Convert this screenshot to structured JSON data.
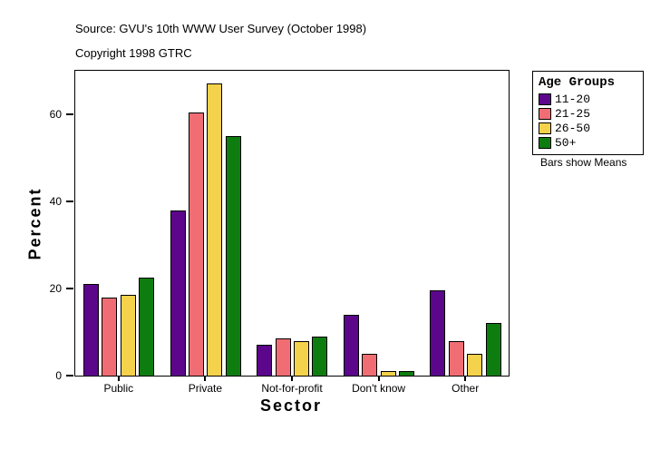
{
  "header": {
    "source_line": "Source: GVU's 10th WWW User Survey (October 1998)",
    "copyright_line": "Copyright 1998 GTRC"
  },
  "legend": {
    "title": "Age Groups",
    "items": [
      {
        "label": "11-20",
        "color": "#5C068C"
      },
      {
        "label": "21-25",
        "color": "#F06E73"
      },
      {
        "label": "26-50",
        "color": "#F5D24B"
      },
      {
        "label": "50+",
        "color": "#0E7D10"
      }
    ],
    "note": "Bars show Means"
  },
  "chart_data": {
    "type": "bar",
    "title": "",
    "xlabel": "Sector",
    "ylabel": "Percent",
    "categories": [
      "Public",
      "Private",
      "Not-for-profit",
      "Don't know",
      "Other"
    ],
    "series": [
      {
        "name": "11-20",
        "color": "#5C068C",
        "values": [
          21,
          38,
          7,
          14,
          19.5
        ]
      },
      {
        "name": "21-25",
        "color": "#F06E73",
        "values": [
          18,
          60.5,
          8.5,
          5,
          8
        ]
      },
      {
        "name": "26-50",
        "color": "#F5D24B",
        "values": [
          18.5,
          67,
          8,
          1,
          5
        ]
      },
      {
        "name": "50+",
        "color": "#0E7D10",
        "values": [
          22.5,
          55,
          9,
          1,
          12
        ]
      }
    ],
    "ylim": [
      0,
      70
    ],
    "yticks": [
      0,
      20,
      40,
      60
    ],
    "grid": false,
    "legend_position": "top-right",
    "annotation": "Bars show Means"
  }
}
